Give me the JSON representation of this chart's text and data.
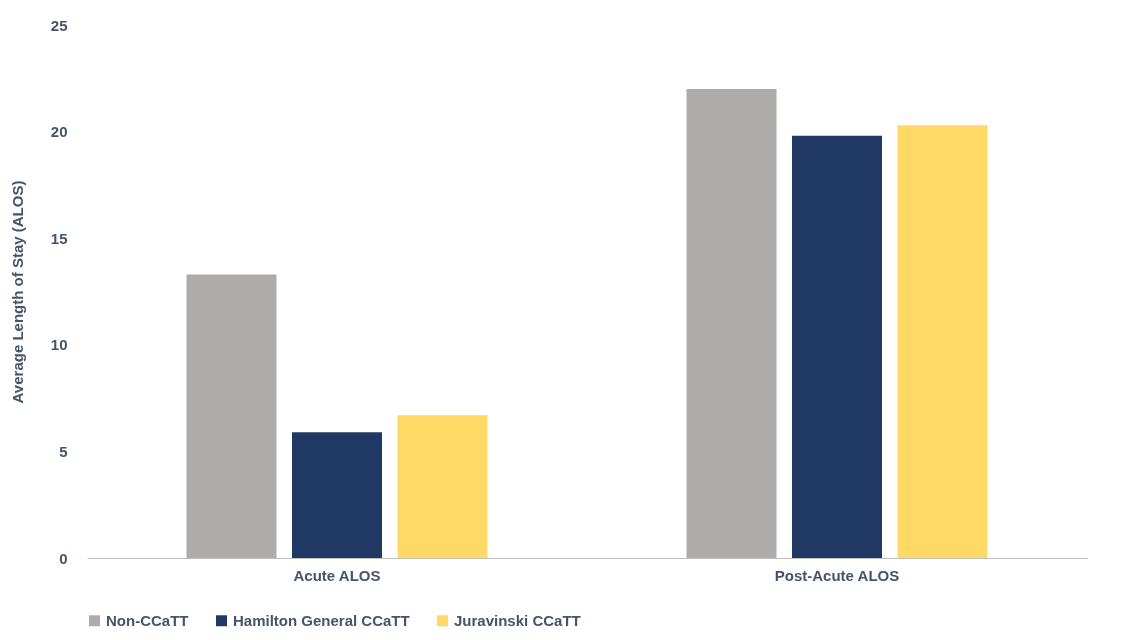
{
  "chart_data": {
    "type": "bar",
    "ylabel": "Average Length of Stay (ALOS)",
    "categories": [
      "Acute ALOS",
      "Post-Acute ALOS"
    ],
    "series": [
      {
        "name": "Non-CCaTT",
        "color": "#aeabab",
        "values": [
          13.3,
          22.0
        ]
      },
      {
        "name": "Hamilton General CCaTT",
        "color": "#203864",
        "values": [
          5.9,
          19.8
        ]
      },
      {
        "name": "Juravinski CCaTT",
        "color": "#ffd966",
        "values": [
          6.7,
          20.3
        ]
      }
    ],
    "ylim": [
      0,
      25
    ],
    "yticks": [
      0,
      5,
      10,
      15,
      20,
      25
    ],
    "grid": false,
    "legend": "bottom"
  }
}
